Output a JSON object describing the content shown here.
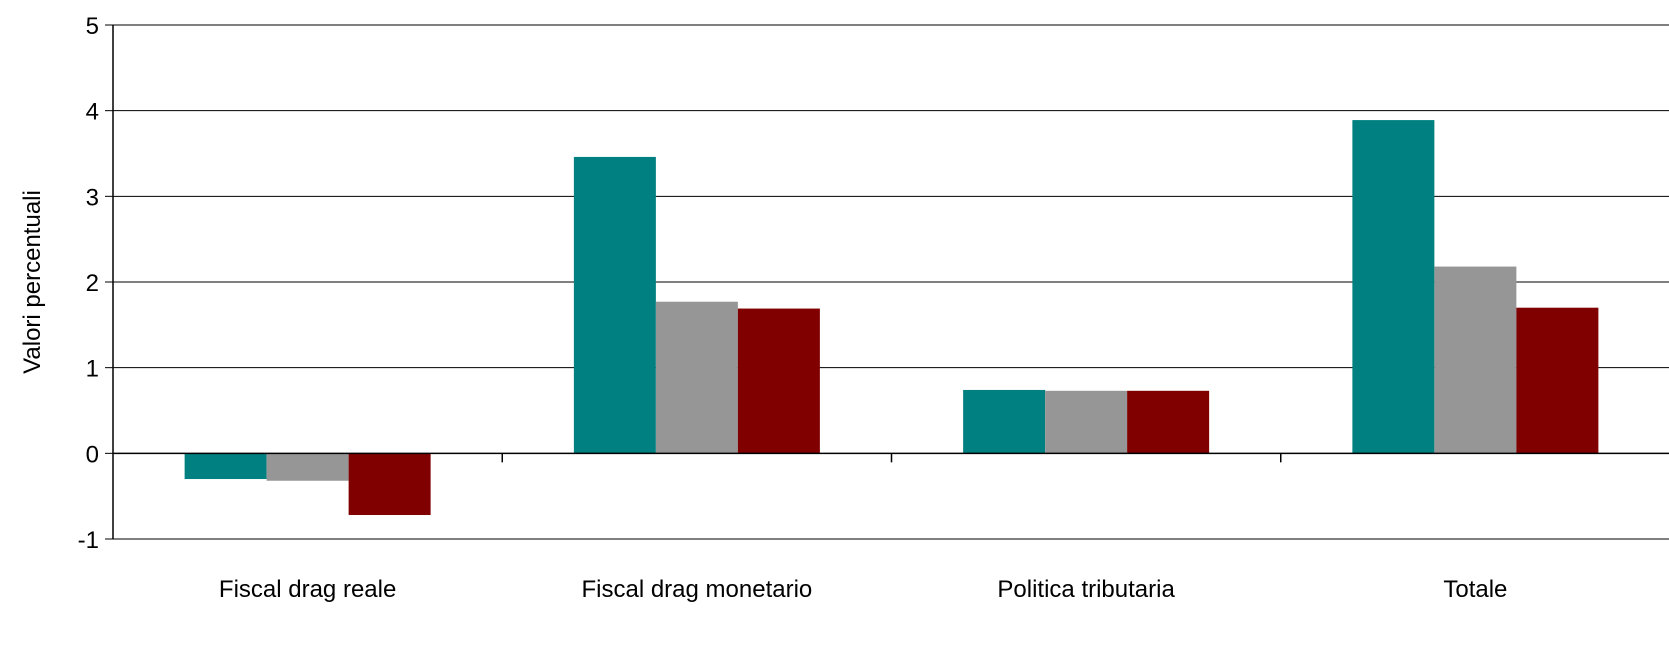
{
  "chart_data": {
    "type": "bar",
    "title": "",
    "xlabel": "",
    "ylabel": "Valori percentuali",
    "ylim": [
      -1,
      5
    ],
    "yticks": [
      -1,
      0,
      1,
      2,
      3,
      4,
      5
    ],
    "grid": true,
    "legend": "none",
    "categories": [
      "Fiscal drag reale",
      "Fiscal drag monetario",
      "Politica tributaria",
      "Totale"
    ],
    "series": [
      {
        "color": "#008080",
        "values": [
          -0.3,
          3.46,
          0.74,
          3.89
        ]
      },
      {
        "color": "#969696",
        "values": [
          -0.32,
          1.77,
          0.73,
          2.18
        ]
      },
      {
        "color": "#800000",
        "values": [
          -0.72,
          1.69,
          0.73,
          1.7
        ]
      }
    ]
  }
}
